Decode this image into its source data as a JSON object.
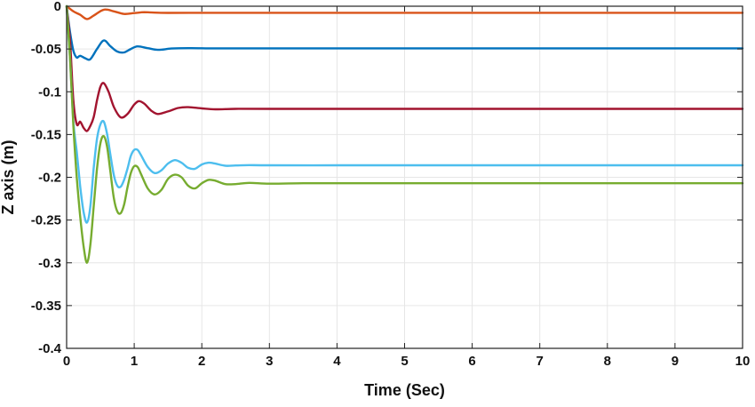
{
  "chart_data": {
    "type": "line",
    "title": "",
    "xlabel": "Time (Sec)",
    "ylabel": "Z axis (m)",
    "xlim": [
      0,
      10
    ],
    "ylim": [
      -0.4,
      0
    ],
    "xticks": [
      0,
      1,
      2,
      3,
      4,
      5,
      6,
      7,
      8,
      9,
      10
    ],
    "xtick_labels": [
      "0",
      "1",
      "2",
      "3",
      "4",
      "5",
      "6",
      "7",
      "8",
      "9",
      "10"
    ],
    "yticks": [
      0,
      -0.05,
      -0.1,
      -0.15,
      -0.2,
      -0.25,
      -0.3,
      -0.35,
      -0.4
    ],
    "ytick_labels": [
      "0",
      "-0.05",
      "-0.1",
      "-0.15",
      "-0.2",
      "-0.25",
      "-0.3",
      "-0.35",
      "-0.4"
    ],
    "grid": true,
    "series": [
      {
        "color": "#D95319",
        "x": [
          0,
          0.1,
          0.2,
          0.3,
          0.4,
          0.55,
          0.7,
          0.85,
          1.0,
          1.15,
          1.3,
          1.5,
          1.8,
          2.2,
          2.6,
          3.0,
          4.0,
          5.0,
          6.0,
          7.0,
          8.0,
          9.0,
          10.0
        ],
        "y": [
          0,
          -0.006,
          -0.01,
          -0.015,
          -0.011,
          -0.004,
          -0.006,
          -0.009,
          -0.008,
          -0.007,
          -0.0075,
          -0.0078,
          -0.0077,
          -0.0077,
          -0.0077,
          -0.0077,
          -0.0077,
          -0.0077,
          -0.0077,
          -0.0077,
          -0.0077,
          -0.0077,
          -0.0077
        ]
      },
      {
        "color": "#0072BD",
        "x": [
          0,
          0.05,
          0.1,
          0.15,
          0.2,
          0.28,
          0.35,
          0.45,
          0.55,
          0.65,
          0.75,
          0.85,
          0.95,
          1.05,
          1.2,
          1.35,
          1.55,
          1.8,
          2.1,
          2.5,
          3.0,
          4.0,
          5.0,
          6.0,
          7.0,
          8.0,
          9.0,
          10.0
        ],
        "y": [
          0,
          -0.03,
          -0.052,
          -0.06,
          -0.058,
          -0.061,
          -0.062,
          -0.05,
          -0.04,
          -0.047,
          -0.053,
          -0.054,
          -0.05,
          -0.047,
          -0.049,
          -0.051,
          -0.0495,
          -0.049,
          -0.0492,
          -0.0492,
          -0.0492,
          -0.0492,
          -0.0492,
          -0.0492,
          -0.0492,
          -0.0492,
          -0.0492,
          -0.0492
        ]
      },
      {
        "color": "#A2142F",
        "x": [
          0,
          0.05,
          0.1,
          0.15,
          0.2,
          0.25,
          0.3,
          0.35,
          0.4,
          0.45,
          0.5,
          0.55,
          0.62,
          0.7,
          0.8,
          0.9,
          1.0,
          1.07,
          1.15,
          1.25,
          1.35,
          1.5,
          1.65,
          1.8,
          2.0,
          2.2,
          2.5,
          3.0,
          4.0,
          5.0,
          6.0,
          7.0,
          8.0,
          9.0,
          10.0
        ],
        "y": [
          0,
          -0.04,
          -0.11,
          -0.138,
          -0.135,
          -0.142,
          -0.146,
          -0.14,
          -0.13,
          -0.11,
          -0.094,
          -0.09,
          -0.1,
          -0.118,
          -0.13,
          -0.126,
          -0.115,
          -0.111,
          -0.114,
          -0.122,
          -0.126,
          -0.123,
          -0.119,
          -0.118,
          -0.1195,
          -0.1205,
          -0.12,
          -0.12,
          -0.12,
          -0.12,
          -0.12,
          -0.12,
          -0.12,
          -0.12,
          -0.12
        ]
      },
      {
        "color": "#4DBEEE",
        "x": [
          0,
          0.05,
          0.1,
          0.15,
          0.2,
          0.25,
          0.3,
          0.35,
          0.4,
          0.45,
          0.5,
          0.55,
          0.6,
          0.65,
          0.7,
          0.75,
          0.8,
          0.85,
          0.9,
          0.95,
          1.0,
          1.05,
          1.1,
          1.2,
          1.3,
          1.4,
          1.5,
          1.6,
          1.7,
          1.8,
          1.9,
          2.0,
          2.1,
          2.2,
          2.35,
          2.5,
          2.7,
          3.0,
          4.0,
          5.0,
          6.0,
          7.0,
          8.0,
          9.0,
          10.0
        ],
        "y": [
          0,
          -0.06,
          -0.135,
          -0.17,
          -0.21,
          -0.24,
          -0.253,
          -0.235,
          -0.19,
          -0.155,
          -0.138,
          -0.135,
          -0.15,
          -0.175,
          -0.198,
          -0.21,
          -0.211,
          -0.203,
          -0.19,
          -0.175,
          -0.168,
          -0.168,
          -0.174,
          -0.188,
          -0.195,
          -0.192,
          -0.184,
          -0.18,
          -0.183,
          -0.189,
          -0.19,
          -0.185,
          -0.183,
          -0.184,
          -0.1865,
          -0.1862,
          -0.1858,
          -0.186,
          -0.186,
          -0.186,
          -0.186,
          -0.186,
          -0.186,
          -0.186,
          -0.186
        ]
      },
      {
        "color": "#77AC30",
        "x": [
          0,
          0.05,
          0.1,
          0.15,
          0.2,
          0.25,
          0.3,
          0.35,
          0.4,
          0.45,
          0.5,
          0.55,
          0.6,
          0.65,
          0.7,
          0.75,
          0.8,
          0.85,
          0.9,
          0.95,
          1.0,
          1.05,
          1.1,
          1.2,
          1.3,
          1.4,
          1.5,
          1.6,
          1.7,
          1.8,
          1.9,
          2.0,
          2.1,
          2.2,
          2.35,
          2.5,
          2.7,
          3.0,
          3.5,
          4.0,
          5.0,
          6.0,
          7.0,
          8.0,
          9.0,
          10.0
        ],
        "y": [
          0,
          -0.06,
          -0.14,
          -0.2,
          -0.245,
          -0.28,
          -0.3,
          -0.28,
          -0.235,
          -0.19,
          -0.16,
          -0.152,
          -0.165,
          -0.195,
          -0.225,
          -0.24,
          -0.242,
          -0.232,
          -0.212,
          -0.195,
          -0.187,
          -0.188,
          -0.196,
          -0.213,
          -0.22,
          -0.215,
          -0.202,
          -0.197,
          -0.2,
          -0.21,
          -0.213,
          -0.207,
          -0.203,
          -0.204,
          -0.208,
          -0.208,
          -0.2065,
          -0.2075,
          -0.207,
          -0.207,
          -0.207,
          -0.207,
          -0.207,
          -0.207,
          -0.207,
          -0.207
        ]
      }
    ]
  }
}
